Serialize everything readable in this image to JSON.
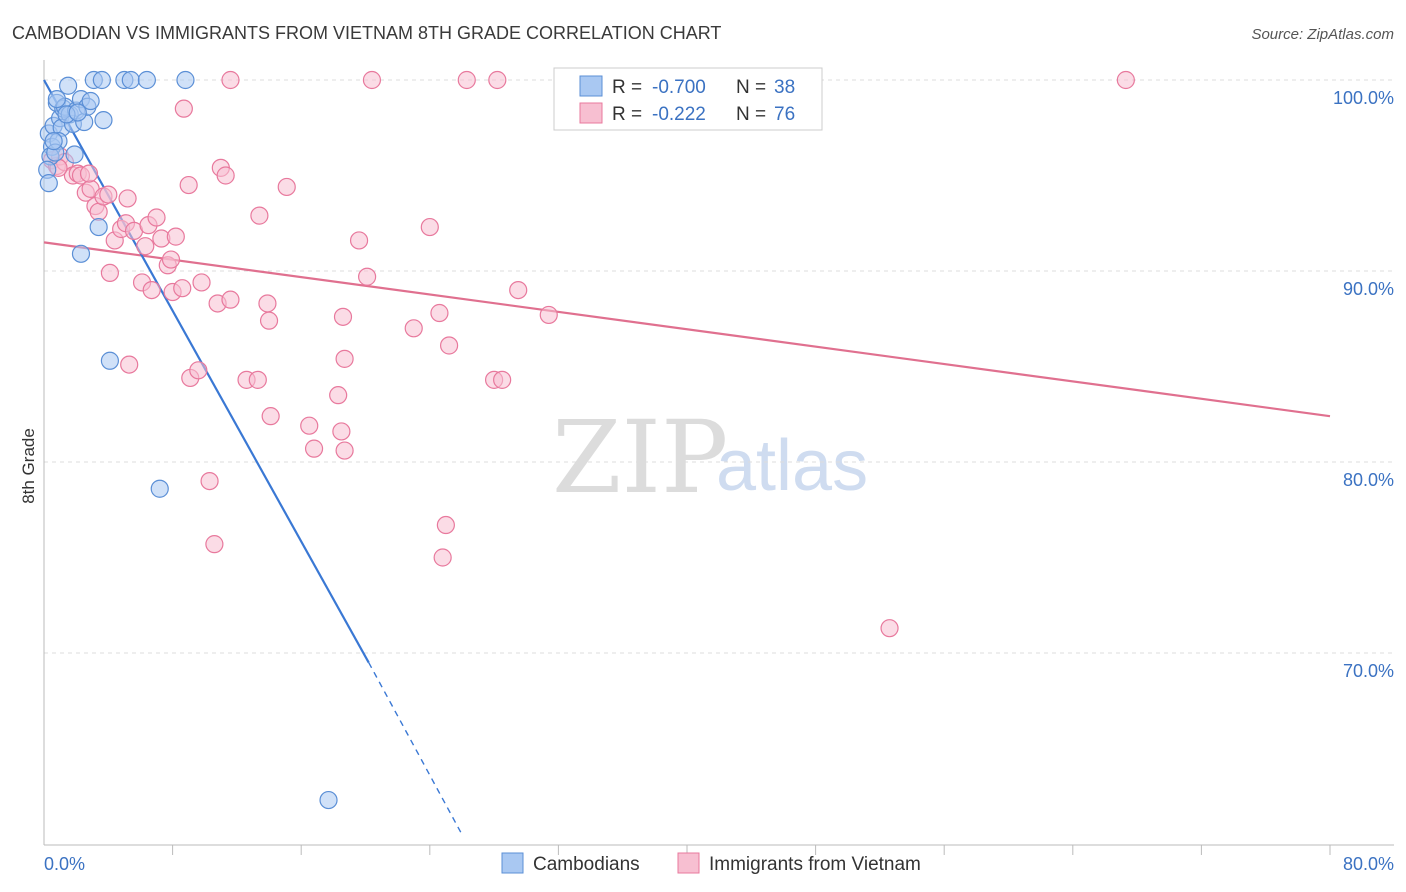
{
  "chart_data": {
    "type": "scatter",
    "title": "CAMBODIAN VS IMMIGRANTS FROM VIETNAM 8TH GRADE CORRELATION CHART",
    "source": "Source: ZipAtlas.com",
    "ylabel": "8th Grade",
    "xlim": [
      0,
      80
    ],
    "ylim": [
      60.5,
      102
    ],
    "x_tick_labels": [
      {
        "value": 0,
        "label": "0.0%"
      },
      {
        "value": 80,
        "label": "80.0%"
      }
    ],
    "x_minor_ticks": [
      8,
      16,
      24,
      32,
      40,
      48,
      56,
      64,
      72,
      80
    ],
    "y_ticks": [
      {
        "value": 100,
        "label": "100.0%"
      },
      {
        "value": 90,
        "label": "90.0%"
      },
      {
        "value": 80,
        "label": "80.0%"
      },
      {
        "value": 70,
        "label": "70.0%"
      }
    ],
    "watermark": {
      "zip": "ZIP",
      "atlas": "atlas"
    },
    "legend": {
      "rows": [
        {
          "r_label": "R =",
          "r_value": "-0.700",
          "n_label": "N =",
          "n_value": "38"
        },
        {
          "r_label": "R =",
          "r_value": "-0.222",
          "n_label": "N =",
          "n_value": "76"
        }
      ]
    },
    "series": [
      {
        "name": "Cambodians",
        "fill": "#a9c8f2",
        "stroke": "#5b8fd6",
        "line_color": "#3a78d4",
        "trend": {
          "x0": 0,
          "y0": 100,
          "x1": 20.2,
          "y1": 69.5,
          "dash_x1": 26,
          "dash_y1": 60.5
        },
        "points": [
          {
            "x": 0.3,
            "y": 97.2
          },
          {
            "x": 0.5,
            "y": 96.5
          },
          {
            "x": 0.4,
            "y": 96.0
          },
          {
            "x": 0.2,
            "y": 95.3
          },
          {
            "x": 0.3,
            "y": 94.6
          },
          {
            "x": 0.6,
            "y": 97.6
          },
          {
            "x": 0.8,
            "y": 98.8
          },
          {
            "x": 1.0,
            "y": 98.0
          },
          {
            "x": 1.2,
            "y": 98.5
          },
          {
            "x": 1.3,
            "y": 98.6
          },
          {
            "x": 1.5,
            "y": 99.7
          },
          {
            "x": 1.6,
            "y": 98.2
          },
          {
            "x": 1.1,
            "y": 97.5
          },
          {
            "x": 0.9,
            "y": 96.8
          },
          {
            "x": 0.7,
            "y": 96.2
          },
          {
            "x": 1.8,
            "y": 97.7
          },
          {
            "x": 2.0,
            "y": 98.4
          },
          {
            "x": 2.3,
            "y": 99.0
          },
          {
            "x": 2.5,
            "y": 97.8
          },
          {
            "x": 2.7,
            "y": 98.6
          },
          {
            "x": 2.9,
            "y": 98.9
          },
          {
            "x": 3.1,
            "y": 100.0
          },
          {
            "x": 3.6,
            "y": 100.0
          },
          {
            "x": 3.7,
            "y": 97.9
          },
          {
            "x": 5.0,
            "y": 100.0
          },
          {
            "x": 5.4,
            "y": 100.0
          },
          {
            "x": 6.4,
            "y": 100.0
          },
          {
            "x": 8.8,
            "y": 100.0
          },
          {
            "x": 1.9,
            "y": 96.1
          },
          {
            "x": 3.4,
            "y": 92.3
          },
          {
            "x": 2.3,
            "y": 90.9
          },
          {
            "x": 4.1,
            "y": 85.3
          },
          {
            "x": 7.2,
            "y": 78.6
          },
          {
            "x": 17.7,
            "y": 62.3
          },
          {
            "x": 0.8,
            "y": 99.0
          },
          {
            "x": 1.4,
            "y": 98.2
          },
          {
            "x": 2.1,
            "y": 98.3
          },
          {
            "x": 0.6,
            "y": 96.8
          }
        ]
      },
      {
        "name": "Immigrants from Vietnam",
        "fill": "#f7bfd1",
        "stroke": "#e8799d",
        "line_color": "#e0708f",
        "trend": {
          "x0": 0,
          "y0": 91.5,
          "x1": 80,
          "y1": 82.4
        },
        "points": [
          {
            "x": 0.5,
            "y": 95.8
          },
          {
            "x": 0.8,
            "y": 95.5
          },
          {
            "x": 1.0,
            "y": 96.0
          },
          {
            "x": 1.3,
            "y": 95.7
          },
          {
            "x": 1.8,
            "y": 95.0
          },
          {
            "x": 2.1,
            "y": 95.1
          },
          {
            "x": 2.3,
            "y": 95.0
          },
          {
            "x": 2.6,
            "y": 94.1
          },
          {
            "x": 2.9,
            "y": 94.3
          },
          {
            "x": 3.2,
            "y": 93.4
          },
          {
            "x": 3.4,
            "y": 93.1
          },
          {
            "x": 3.7,
            "y": 93.9
          },
          {
            "x": 4.0,
            "y": 94.0
          },
          {
            "x": 4.4,
            "y": 91.6
          },
          {
            "x": 4.8,
            "y": 92.2
          },
          {
            "x": 5.1,
            "y": 92.5
          },
          {
            "x": 5.2,
            "y": 93.8
          },
          {
            "x": 5.6,
            "y": 92.1
          },
          {
            "x": 6.3,
            "y": 91.3
          },
          {
            "x": 6.5,
            "y": 92.4
          },
          {
            "x": 7.0,
            "y": 92.8
          },
          {
            "x": 7.3,
            "y": 91.7
          },
          {
            "x": 7.7,
            "y": 90.3
          },
          {
            "x": 7.9,
            "y": 90.6
          },
          {
            "x": 8.2,
            "y": 91.8
          },
          {
            "x": 4.1,
            "y": 89.9
          },
          {
            "x": 6.1,
            "y": 89.4
          },
          {
            "x": 6.7,
            "y": 89.0
          },
          {
            "x": 8.0,
            "y": 88.9
          },
          {
            "x": 8.6,
            "y": 89.1
          },
          {
            "x": 9.0,
            "y": 94.5
          },
          {
            "x": 8.7,
            "y": 98.5
          },
          {
            "x": 9.8,
            "y": 89.4
          },
          {
            "x": 10.8,
            "y": 88.3
          },
          {
            "x": 11.6,
            "y": 88.5
          },
          {
            "x": 11.0,
            "y": 95.4
          },
          {
            "x": 11.3,
            "y": 95.0
          },
          {
            "x": 11.6,
            "y": 100.0
          },
          {
            "x": 13.4,
            "y": 92.9
          },
          {
            "x": 13.9,
            "y": 88.3
          },
          {
            "x": 14.0,
            "y": 87.4
          },
          {
            "x": 15.1,
            "y": 94.4
          },
          {
            "x": 9.1,
            "y": 84.4
          },
          {
            "x": 9.6,
            "y": 84.8
          },
          {
            "x": 12.6,
            "y": 84.3
          },
          {
            "x": 13.3,
            "y": 84.3
          },
          {
            "x": 14.1,
            "y": 82.4
          },
          {
            "x": 16.5,
            "y": 81.9
          },
          {
            "x": 16.8,
            "y": 80.7
          },
          {
            "x": 18.3,
            "y": 83.5
          },
          {
            "x": 18.6,
            "y": 87.6
          },
          {
            "x": 18.7,
            "y": 85.4
          },
          {
            "x": 18.5,
            "y": 81.6
          },
          {
            "x": 18.7,
            "y": 80.6
          },
          {
            "x": 19.6,
            "y": 91.6
          },
          {
            "x": 20.1,
            "y": 89.7
          },
          {
            "x": 20.4,
            "y": 100.0
          },
          {
            "x": 23.0,
            "y": 87.0
          },
          {
            "x": 24.0,
            "y": 92.3
          },
          {
            "x": 24.6,
            "y": 87.8
          },
          {
            "x": 25.0,
            "y": 76.7
          },
          {
            "x": 25.2,
            "y": 86.1
          },
          {
            "x": 26.3,
            "y": 100.0
          },
          {
            "x": 28.0,
            "y": 84.3
          },
          {
            "x": 28.2,
            "y": 100.0
          },
          {
            "x": 28.5,
            "y": 84.3
          },
          {
            "x": 29.5,
            "y": 89.0
          },
          {
            "x": 31.4,
            "y": 87.7
          },
          {
            "x": 10.3,
            "y": 79.0
          },
          {
            "x": 10.6,
            "y": 75.7
          },
          {
            "x": 24.8,
            "y": 75.0
          },
          {
            "x": 52.6,
            "y": 71.3
          },
          {
            "x": 67.3,
            "y": 100.0
          },
          {
            "x": 5.3,
            "y": 85.1
          },
          {
            "x": 2.8,
            "y": 95.1
          },
          {
            "x": 0.9,
            "y": 95.4
          }
        ]
      }
    ]
  },
  "bottom_legend": [
    {
      "label": "Cambodians",
      "series": 0
    },
    {
      "label": "Immigrants from Vietnam",
      "series": 1
    }
  ]
}
